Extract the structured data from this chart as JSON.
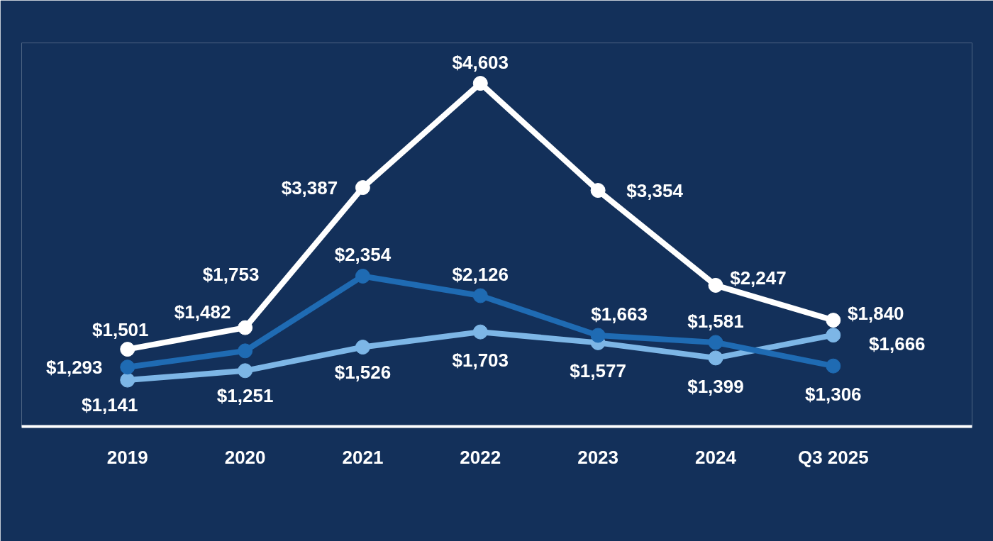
{
  "chart_data": {
    "type": "line",
    "categories": [
      "2019",
      "2020",
      "2021",
      "2022",
      "2023",
      "2024",
      "Q3 2025"
    ],
    "series": [
      {
        "color": "#ffffff",
        "values": [
          1501,
          1753,
          3387,
          4603,
          3354,
          2247,
          1840
        ],
        "value_labels": [
          "$1,501",
          "$1,753",
          "$3,387",
          "$4,603",
          "$3,354",
          "$2,247",
          "$1,840"
        ]
      },
      {
        "color": "#1f6bb3",
        "values": [
          1293,
          1482,
          2354,
          2126,
          1663,
          1581,
          1306
        ],
        "value_labels": [
          "$1,293",
          "$1,482",
          "$2,354",
          "$2,126",
          "$1,663",
          "$1,581",
          "$1,306"
        ]
      },
      {
        "color": "#7db6e6",
        "values": [
          1141,
          1251,
          1526,
          1703,
          1577,
          1399,
          1666
        ],
        "value_labels": [
          "$1,141",
          "$1,251",
          "$1,526",
          "$1,703",
          "$1,577",
          "$1,399",
          "$1,666"
        ]
      }
    ],
    "ylim": [
      600,
      5075
    ],
    "tick_labels": "x",
    "grid": false,
    "marker": "circle",
    "line_style": "solid"
  }
}
